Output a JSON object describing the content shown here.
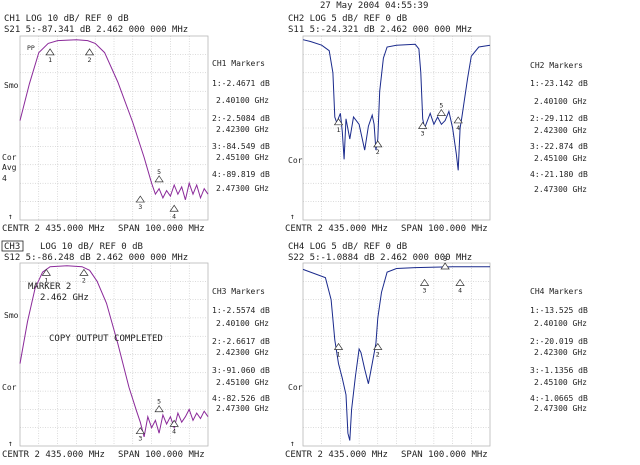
{
  "timestamp": "27 May 2004   04:55:39",
  "copy_message": "COPY OUTPUT COMPLETED",
  "marker_popup": {
    "line1": "MARKER 2",
    "line2": "2.462 GHz"
  },
  "colors": {
    "ch1": "#8b2a9a",
    "ch2": "#1a2a8c",
    "ch3": "#8b2a9a",
    "ch4": "#1a2a8c",
    "grid": "#b8b8b8",
    "text": "#222222"
  },
  "channels": [
    {
      "id": "ch1",
      "name": "CH1",
      "header": "CH1   LOG      10 dB/ REF 0 dB",
      "param_line": "S21    5:-87.341 dB  2.462 000 000 MHz",
      "side_top": "Smo",
      "side_mid": "Cor",
      "side_mid2": "Avg",
      "side_mid3": "4",
      "bottom_left": "CENTR 2 435.000 MHz",
      "bottom_right": "SPAN 100.000 MHz",
      "markers_title": "CH1 Markers",
      "markers": [
        {
          "value": "1:-2.4671 dB",
          "freq": "2.40100 GHz"
        },
        {
          "value": "2:-2.5084 dB",
          "freq": "2.42300 GHz"
        },
        {
          "value": "3:-84.549 dB",
          "freq": "2.45100 GHz"
        },
        {
          "value": "4:-89.819 dB",
          "freq": "2.47300 GHz"
        }
      ]
    },
    {
      "id": "ch2",
      "name": "CH2",
      "header": "CH2   LOG      5 dB/ REF 0 dB",
      "param_line": "S11    5:-24.321 dB  2.462 000 000 MHz",
      "side_top": "",
      "side_mid": "Cor",
      "side_mid2": "",
      "side_mid3": "",
      "bottom_left": "CENTR 2 435.000 MHz",
      "bottom_right": "SPAN 100.000 MHz",
      "markers_title": "CH2 Markers",
      "markers": [
        {
          "value": "1:-23.142 dB",
          "freq": "2.40100 GHz"
        },
        {
          "value": "2:-29.112 dB",
          "freq": "2.42300 GHz"
        },
        {
          "value": "3:-22.874 dB",
          "freq": "2.45100 GHz"
        },
        {
          "value": "4:-21.180 dB",
          "freq": "2.47300 GHz"
        }
      ]
    },
    {
      "id": "ch3",
      "name": "CH3",
      "header": "LOG      10 dB/ REF 0 dB",
      "param_line": "S12    5:-86.248 dB  2.462 000 000 MHz",
      "side_top": "Smo",
      "side_mid": "Cor",
      "side_mid2": "",
      "side_mid3": "",
      "bottom_left": "CENTR 2 435.000 MHz",
      "bottom_right": "SPAN 100.000 MHz",
      "markers_title": "CH3 Markers",
      "markers": [
        {
          "value": "1:-2.5574 dB",
          "freq": "2.40100 GHz"
        },
        {
          "value": "2:-2.6617 dB",
          "freq": "2.42300 GHz"
        },
        {
          "value": "3:-91.060 dB",
          "freq": "2.45100 GHz"
        },
        {
          "value": "4:-82.526 dB",
          "freq": "2.47300 GHz"
        }
      ]
    },
    {
      "id": "ch4",
      "name": "CH4",
      "header": "CH4   LOG      5 dB/ REF 0 dB",
      "param_line": "S22    5:-1.0884 dB  2.462 000 000 MHz",
      "side_top": "",
      "side_mid": "Cor",
      "side_mid2": "",
      "side_mid3": "",
      "bottom_left": "CENTR 2 435.000 MHz",
      "bottom_right": "SPAN 100.000 MHz",
      "markers_title": "CH4 Markers",
      "markers": [
        {
          "value": "1:-13.525 dB",
          "freq": "2.40100 GHz"
        },
        {
          "value": "2:-20.019 dB",
          "freq": "2.42300 GHz"
        },
        {
          "value": "3:-1.1356 dB",
          "freq": "2.45100 GHz"
        },
        {
          "value": "4:-1.0665 dB",
          "freq": "2.47300 GHz"
        }
      ]
    }
  ]
}
